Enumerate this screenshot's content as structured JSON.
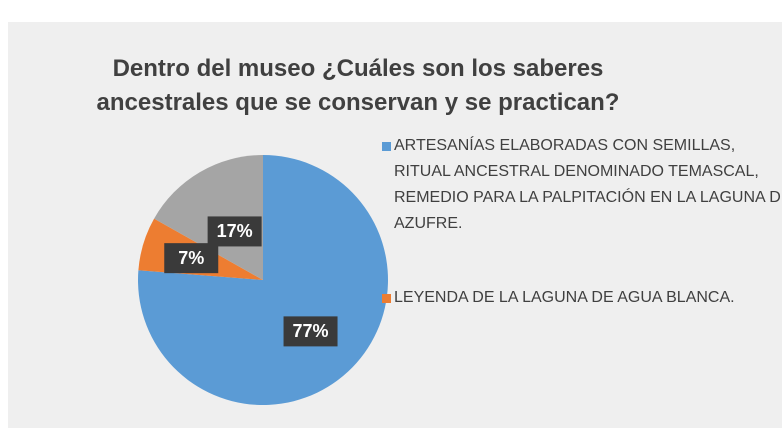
{
  "chart_data": {
    "type": "pie",
    "title": "Dentro del museo ¿Cuáles son los saberes ancestrales que se conservan y se practican?",
    "categories": [
      "ARTESANÍAS ELABORADAS CON SEMILLAS, RITUAL ANCESTRAL DENOMINADO TEMASCAL, REMEDIO PARA LA PALPITACIÓN EN LA LAGUNA DE AZUFRE.",
      "LEYENDA DE LA LAGUNA DE AGUA BLANCA.",
      null
    ],
    "values": [
      77,
      7,
      17
    ],
    "value_labels": [
      "77%",
      "7%",
      "17%"
    ],
    "colors": [
      "#5b9bd5",
      "#ed7d31",
      "#a5a5a5"
    ]
  }
}
